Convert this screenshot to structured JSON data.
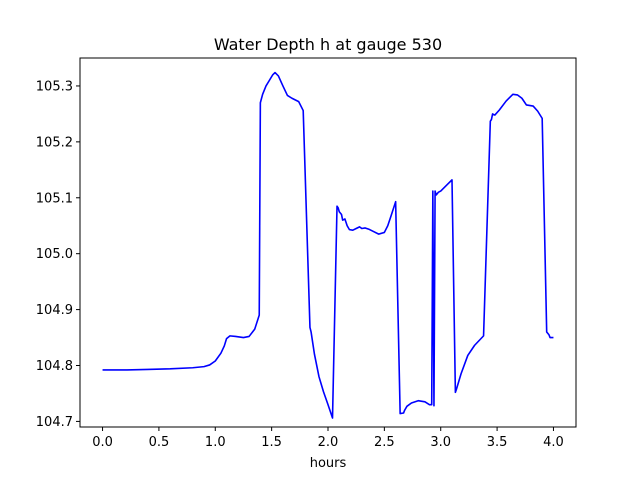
{
  "chart_data": {
    "type": "line",
    "title": "Water Depth h at gauge 530",
    "xlabel": "hours",
    "ylabel": "",
    "xlim": [
      -0.2,
      4.2
    ],
    "ylim": [
      104.69,
      105.35
    ],
    "xticks": [
      0.0,
      0.5,
      1.0,
      1.5,
      2.0,
      2.5,
      3.0,
      3.5,
      4.0
    ],
    "xtick_labels": [
      "0.0",
      "0.5",
      "1.0",
      "1.5",
      "2.0",
      "2.5",
      "3.0",
      "3.5",
      "4.0"
    ],
    "yticks": [
      104.7,
      104.8,
      104.9,
      105.0,
      105.1,
      105.2,
      105.3
    ],
    "ytick_labels": [
      "104.7",
      "104.8",
      "104.9",
      "105.0",
      "105.1",
      "105.2",
      "105.3"
    ],
    "grid": false,
    "series": [
      {
        "color": "#0000ff",
        "x": [
          0.0,
          0.2,
          0.4,
          0.6,
          0.8,
          0.9,
          0.95,
          1.0,
          1.05,
          1.08,
          1.1,
          1.13,
          1.18,
          1.25,
          1.3,
          1.35,
          1.39,
          1.4,
          1.42,
          1.45,
          1.48,
          1.51,
          1.53,
          1.56,
          1.6,
          1.64,
          1.68,
          1.74,
          1.78,
          1.84,
          1.85,
          1.88,
          1.92,
          1.96,
          2.0,
          2.04,
          2.08,
          2.09,
          2.1,
          2.12,
          2.13,
          2.15,
          2.17,
          2.19,
          2.22,
          2.25,
          2.28,
          2.3,
          2.33,
          2.36,
          2.4,
          2.45,
          2.5,
          2.53,
          2.56,
          2.6,
          2.64,
          2.67,
          2.68,
          2.7,
          2.74,
          2.8,
          2.86,
          2.9,
          2.92,
          2.93,
          2.94,
          2.95,
          2.96,
          2.98,
          3.0,
          3.03,
          3.06,
          3.1,
          3.13,
          3.14,
          3.18,
          3.24,
          3.3,
          3.38,
          3.44,
          3.45,
          3.46,
          3.48,
          3.52,
          3.58,
          3.64,
          3.68,
          3.72,
          3.76,
          3.82,
          3.86,
          3.9,
          3.94,
          3.96,
          3.97,
          4.0
        ],
        "y": [
          104.792,
          104.792,
          104.793,
          104.794,
          104.796,
          104.798,
          104.801,
          104.808,
          104.822,
          104.835,
          104.848,
          104.853,
          104.852,
          104.85,
          104.852,
          104.865,
          104.89,
          105.27,
          105.285,
          105.3,
          105.31,
          105.32,
          105.324,
          105.318,
          105.3,
          105.283,
          105.278,
          105.272,
          105.256,
          104.868,
          104.86,
          104.82,
          104.78,
          104.753,
          104.73,
          104.706,
          105.085,
          105.082,
          105.075,
          105.07,
          105.06,
          105.062,
          105.05,
          105.043,
          105.042,
          105.045,
          105.048,
          105.045,
          105.046,
          105.044,
          105.04,
          105.035,
          105.038,
          105.05,
          105.068,
          105.093,
          104.714,
          104.715,
          104.72,
          104.727,
          104.733,
          104.737,
          104.735,
          104.73,
          104.73,
          105.112,
          104.728,
          105.112,
          105.105,
          105.11,
          105.112,
          105.118,
          105.124,
          105.132,
          104.752,
          104.758,
          104.785,
          104.818,
          104.836,
          104.853,
          105.237,
          105.24,
          105.25,
          105.248,
          105.257,
          105.273,
          105.285,
          105.284,
          105.278,
          105.266,
          105.264,
          105.255,
          105.242,
          104.86,
          104.855,
          104.85,
          104.85
        ]
      }
    ]
  }
}
